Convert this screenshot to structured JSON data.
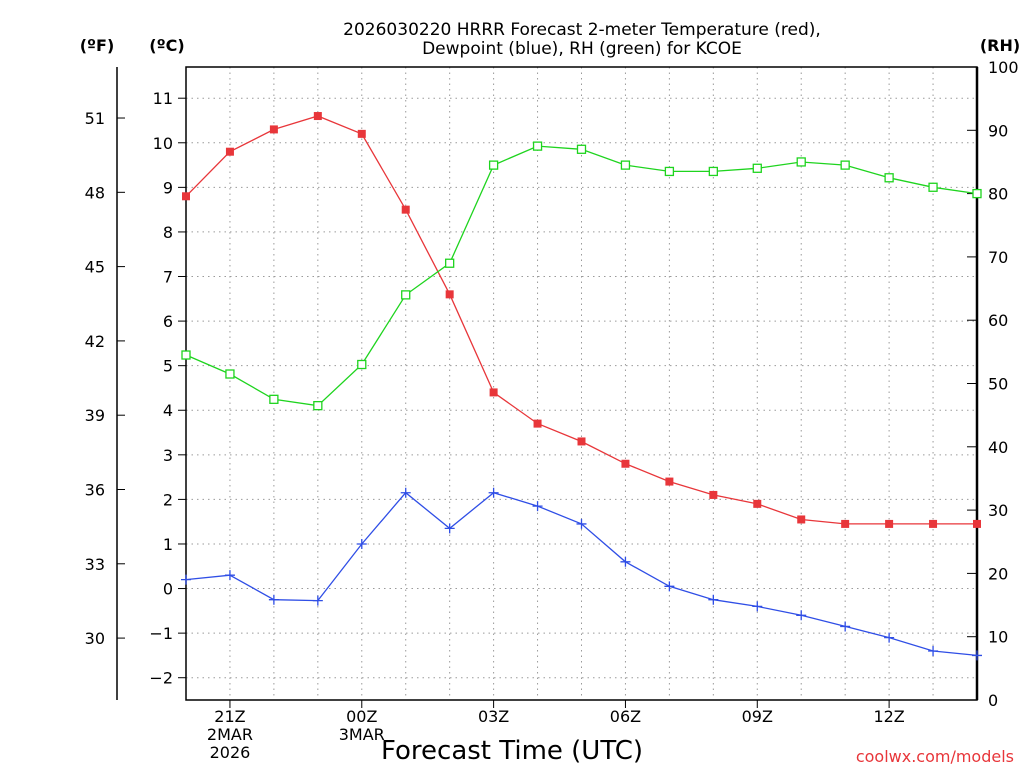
{
  "chart_data": {
    "type": "line",
    "title_lines": [
      "2026030220 HRRR Forecast 2-meter Temperature (red),",
      "Dewpoint (blue), RH (green) for KCOE"
    ],
    "xlabel": "Forecast Time (UTC)",
    "credit": "coolwx.com/models",
    "units": {
      "fahrenheit": "(ºF)",
      "celsius": "(ºC)",
      "rh": "(RH)"
    },
    "x_hours": [
      20,
      21,
      22,
      23,
      24,
      25,
      26,
      27,
      28,
      29,
      30,
      31,
      32,
      33,
      34,
      35,
      36,
      37,
      38
    ],
    "xlim": [
      20,
      38
    ],
    "x_ticks": [
      {
        "x": 21,
        "lines": [
          "21Z",
          "2MAR",
          "2026"
        ]
      },
      {
        "x": 24,
        "lines": [
          "00Z",
          "3MAR"
        ]
      },
      {
        "x": 27,
        "lines": [
          "03Z"
        ]
      },
      {
        "x": 30,
        "lines": [
          "06Z"
        ]
      },
      {
        "x": 33,
        "lines": [
          "09Z"
        ]
      },
      {
        "x": 36,
        "lines": [
          "12Z"
        ]
      }
    ],
    "ylim_celsius": [
      -2.5,
      11.7
    ],
    "y_ticks_celsius": [
      -2,
      -1,
      0,
      1,
      2,
      3,
      4,
      5,
      6,
      7,
      8,
      9,
      10,
      11
    ],
    "y_ticks_celsius_labels": [
      "−2",
      "−1",
      "0",
      "1",
      "2",
      "3",
      "4",
      "5",
      "6",
      "7",
      "8",
      "9",
      "10",
      "11"
    ],
    "y_ticks_fahrenheit": [
      30,
      33,
      36,
      39,
      42,
      45,
      48,
      51
    ],
    "ylim_rh": [
      0,
      100
    ],
    "y_ticks_rh": [
      0,
      10,
      20,
      30,
      40,
      50,
      60,
      70,
      80,
      90,
      100
    ],
    "series": [
      {
        "name": "2-meter Temperature",
        "color": "#e8363a",
        "marker": "filled-square",
        "axis": "celsius",
        "values": [
          8.8,
          9.8,
          10.3,
          10.6,
          10.2,
          8.5,
          6.6,
          4.4,
          3.7,
          3.3,
          2.8,
          2.4,
          2.1,
          1.9,
          1.55,
          1.45,
          1.45,
          1.45,
          1.45
        ]
      },
      {
        "name": "Dewpoint",
        "color": "#2f4ee6",
        "marker": "plus",
        "axis": "celsius",
        "values": [
          0.2,
          0.3,
          -0.25,
          -0.27,
          1.0,
          2.15,
          1.35,
          2.15,
          1.85,
          1.45,
          0.6,
          0.05,
          -0.25,
          -0.4,
          -0.6,
          -0.85,
          -1.1,
          -1.4,
          -1.5
        ]
      },
      {
        "name": "RH",
        "color": "#1ed41e",
        "marker": "open-square",
        "axis": "rh",
        "values": [
          54.5,
          51.5,
          47.5,
          46.5,
          53,
          64,
          69,
          84.5,
          87.5,
          87,
          84.5,
          83.5,
          83.5,
          84,
          85,
          84.5,
          82.5,
          81,
          80
        ]
      }
    ]
  }
}
